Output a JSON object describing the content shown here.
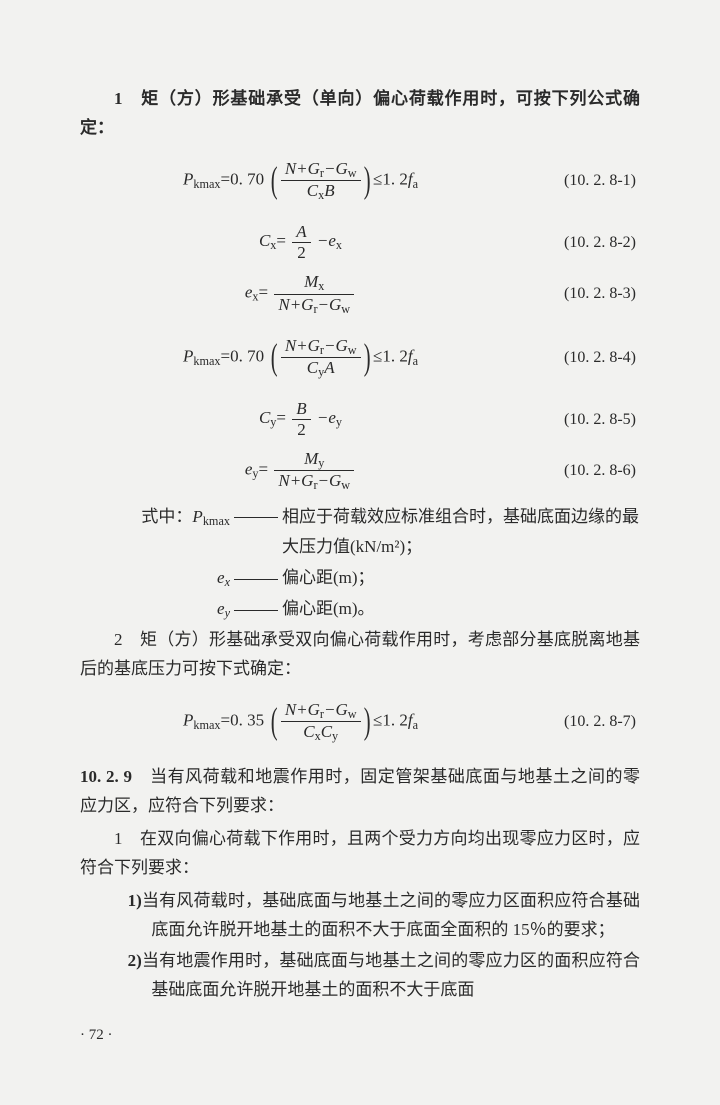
{
  "p1_lead": "1　矩（方）形基础承受（单向）偏心荷载作用时，可按下列公式确定：",
  "eq1": {
    "lhs_sym": "P",
    "lhs_sub": "kmax",
    "coef": "=0. 70",
    "num": "N+G",
    "num_s1": "r",
    "num_mid": "−G",
    "num_s2": "w",
    "den": "C",
    "den_s": "x",
    "den_tail": "B",
    "tail": "≤1. 2",
    "f": "f",
    "f_s": "a",
    "num_label": "(10. 2. 8-1)"
  },
  "eq2": {
    "lhs": "C",
    "lhs_s": "x",
    "eq": "=",
    "fnum": "A",
    "fden": "2",
    "tail": "−e",
    "tail_s": "x",
    "num_label": "(10. 2. 8-2)"
  },
  "eq3": {
    "lhs": "e",
    "lhs_s": "x",
    "eq": "=",
    "fnum": "M",
    "fnum_s": "x",
    "fden": "N+G",
    "fden_s1": "r",
    "fden_mid": "−G",
    "fden_s2": "w",
    "num_label": "(10. 2. 8-3)"
  },
  "eq4": {
    "lhs_sym": "P",
    "lhs_sub": "kmax",
    "coef": "=0. 70",
    "num": "N+G",
    "num_s1": "r",
    "num_mid": "−G",
    "num_s2": "w",
    "den": "C",
    "den_s": "y",
    "den_tail": "A",
    "tail": "≤1. 2",
    "f": "f",
    "f_s": "a",
    "num_label": "(10. 2. 8-4)"
  },
  "eq5": {
    "lhs": "C",
    "lhs_s": "y",
    "eq": "=",
    "fnum": "B",
    "fden": "2",
    "tail": "−e",
    "tail_s": "y",
    "num_label": "(10. 2. 8-5)"
  },
  "eq6": {
    "lhs": "e",
    "lhs_s": "y",
    "eq": "=",
    "fnum": "M",
    "fnum_s": "y",
    "fden": "N+G",
    "fden_s1": "r",
    "fden_s2": "w",
    "num_label": "(10. 2. 8-6)"
  },
  "def_intro": "式中：",
  "def1_sym": "P",
  "def1_sub": "kmax",
  "def1_line1": "相应于荷载效应标准组合时，基础底面边缘的最",
  "def1_line2": "大压力值(kN/m²)；",
  "def2_sym": "e",
  "def2_sub": "x",
  "def2_text": "偏心距(m)；",
  "def3_sym": "e",
  "def3_sub": "y",
  "def3_text": "偏心距(m)。",
  "p2": "2　矩（方）形基础承受双向偏心荷载作用时，考虑部分基底脱离地基后的基底压力可按下式确定：",
  "eq7": {
    "lhs_sym": "P",
    "lhs_sub": "kmax",
    "coef": "=0. 35",
    "num": "N+G",
    "num_s1": "r",
    "num_mid": "−G",
    "num_s2": "w",
    "denA": "C",
    "denA_s": "x",
    "denB": "C",
    "denB_s": "y",
    "tail": "≤1. 2",
    "f": "f",
    "f_s": "a",
    "num_label": "(10. 2. 8-7)"
  },
  "sec": "10. 2. 9",
  "sec_text": "当有风荷载和地震作用时，固定管架基础底面与地基土之间的零应力区，应符合下列要求：",
  "item1": "1　在双向偏心荷载下作用时，且两个受力方向均出现零应力区时，应符合下列要求：",
  "sub1_lead": "1)",
  "sub1": "当有风荷载时，基础底面与地基土之间的零应力区面积应符合基础底面允许脱开地基土的面积不大于底面全面积的 15％的要求；",
  "sub2_lead": "2)",
  "sub2": "当有地震作用时，基础底面与地基土之间的零应力区的面积应符合基础底面允许脱开地基土的面积不大于底面",
  "pagenum": "· 72 ·"
}
